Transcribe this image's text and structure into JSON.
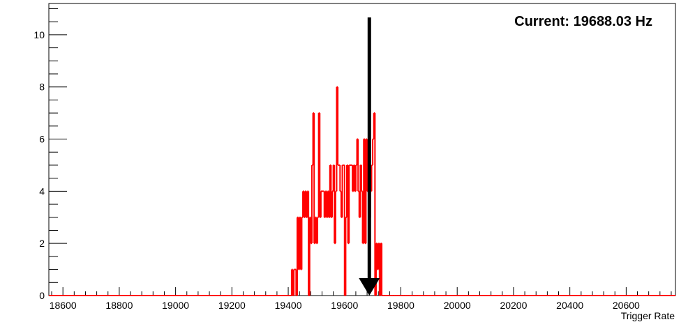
{
  "chart_data": {
    "type": "histogram",
    "xlabel": "Trigger Rate",
    "ylabel": "",
    "xlim": [
      18550,
      20775
    ],
    "ylim": [
      0,
      11.2
    ],
    "xticks": [
      18600,
      18800,
      19000,
      19200,
      19400,
      19600,
      19800,
      20000,
      20200,
      20400,
      20600
    ],
    "yticks": [
      0,
      2,
      4,
      6,
      8,
      10
    ],
    "bin_width": 4,
    "line_color": "#ff0000",
    "annotation": "Current: 19688.03 Hz",
    "arrow_x": 19688.03,
    "arrow_color": "#000000",
    "series": [
      {
        "x": [
          19408,
          19412,
          19416,
          19420,
          19424,
          19428,
          19432,
          19436,
          19440,
          19444,
          19448,
          19452,
          19456,
          19460,
          19464,
          19468,
          19472,
          19476,
          19480,
          19484,
          19488,
          19492,
          19496,
          19500,
          19504,
          19508,
          19512,
          19516,
          19520,
          19524,
          19528,
          19532,
          19536,
          19540,
          19544,
          19548,
          19552,
          19556,
          19560,
          19564,
          19568,
          19572,
          19576,
          19580,
          19584,
          19588,
          19592,
          19596,
          19600,
          19604,
          19608,
          19612,
          19616,
          19620,
          19624,
          19628,
          19632,
          19636,
          19640,
          19644,
          19648,
          19652,
          19656,
          19660,
          19664,
          19668,
          19672,
          19676,
          19680,
          19684,
          19688,
          19692,
          19696,
          19700,
          19704,
          19708,
          19712,
          19716,
          19720,
          19724,
          19728,
          19732,
          19736,
          19740,
          19744,
          19748,
          19752,
          19756,
          19760,
          19764,
          19768,
          19772,
          19776,
          19780,
          19784,
          19788,
          19792,
          19796,
          19800,
          19804,
          19808,
          19812,
          19816,
          19820,
          19824,
          19828,
          19832,
          19836,
          19840,
          19844,
          19848,
          19852,
          19856
        ],
        "values": [
          0,
          1,
          0,
          1,
          1,
          0,
          3,
          1,
          3,
          1,
          3,
          4,
          3,
          4,
          3,
          4,
          0,
          3,
          2,
          5,
          7,
          2,
          3,
          2,
          3,
          7,
          3,
          4,
          4,
          4,
          3,
          4,
          3,
          4,
          3,
          5,
          3,
          4,
          5,
          2,
          4,
          8,
          5,
          5,
          4,
          3,
          5,
          5,
          0,
          3,
          5,
          2,
          5,
          5,
          5,
          4,
          5,
          4,
          5,
          6,
          4,
          3,
          5,
          4,
          2,
          6,
          2,
          6,
          4,
          5,
          3,
          4,
          5,
          6,
          7,
          0,
          2,
          1,
          2,
          0,
          2,
          0,
          0,
          0,
          0,
          0,
          0,
          0,
          0,
          0,
          0,
          0,
          0,
          0,
          0,
          0,
          0,
          0,
          0,
          0,
          0,
          0,
          0,
          0,
          0,
          0,
          0,
          0,
          0,
          0,
          0,
          0,
          0
        ]
      }
    ]
  }
}
